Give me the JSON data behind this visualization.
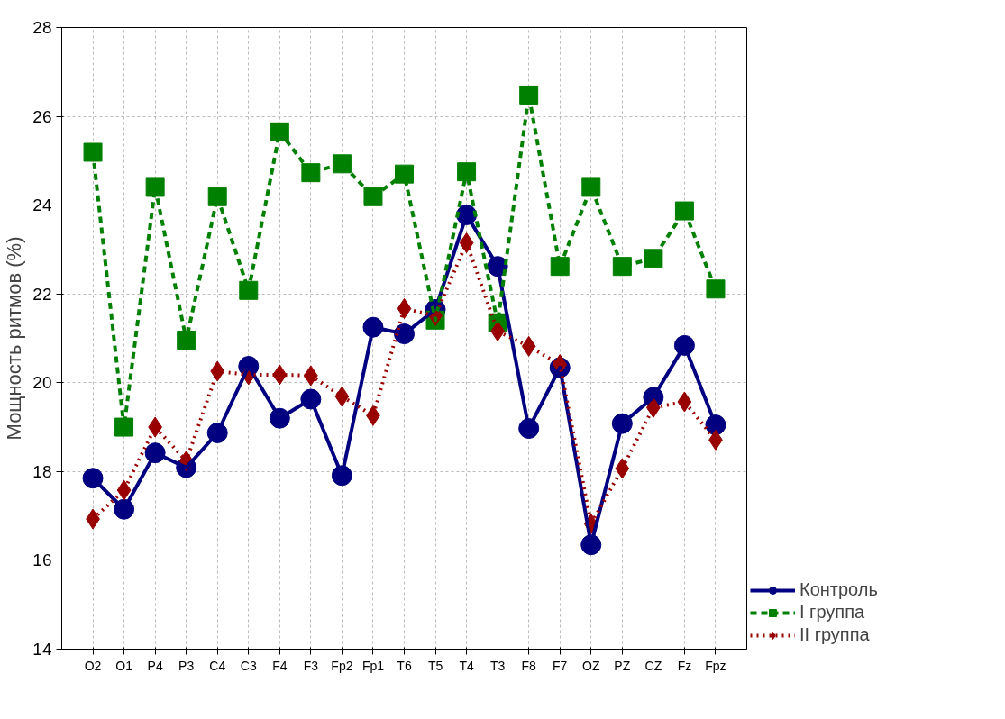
{
  "chart_data": {
    "type": "line",
    "ylabel": "Мощность ритмов (%)",
    "categories": [
      "O2",
      "O1",
      "P4",
      "P3",
      "C4",
      "C3",
      "F4",
      "F3",
      "Fp2",
      "Fp1",
      "T6",
      "T5",
      "T4",
      "T3",
      "F8",
      "F7",
      "OZ",
      "PZ",
      "CZ",
      "Fz",
      "Fpz"
    ],
    "ylim": [
      14,
      28
    ],
    "yticks": [
      14,
      16,
      18,
      20,
      22,
      24,
      26,
      28
    ],
    "grid": true,
    "legend": "bottom right",
    "series": [
      {
        "name": "Контроль",
        "color": "#000080",
        "marker": "circle",
        "line_style": "solid",
        "values": [
          17.85,
          17.15,
          18.42,
          18.09,
          18.87,
          20.37,
          19.2,
          19.63,
          17.91,
          21.25,
          21.1,
          21.65,
          23.78,
          22.62,
          18.97,
          20.34,
          16.35,
          19.08,
          19.67,
          20.84,
          19.05
        ]
      },
      {
        "name": "I группа",
        "color": "#008000",
        "marker": "square",
        "line_style": "dashed",
        "values": [
          25.19,
          19.0,
          24.4,
          20.96,
          24.19,
          22.08,
          25.65,
          24.73,
          24.93,
          24.19,
          24.7,
          21.41,
          24.75,
          21.35,
          26.48,
          22.62,
          24.4,
          22.62,
          22.8,
          23.87,
          22.11
        ]
      },
      {
        "name": "II группа",
        "color": "#990000",
        "marker": "diamond",
        "line_style": "dotted",
        "values": [
          16.93,
          17.58,
          19.0,
          18.24,
          20.26,
          20.18,
          20.18,
          20.16,
          19.69,
          19.26,
          21.67,
          21.51,
          23.15,
          21.16,
          20.82,
          20.41,
          16.82,
          18.07,
          19.44,
          19.57,
          18.71
        ]
      }
    ]
  }
}
